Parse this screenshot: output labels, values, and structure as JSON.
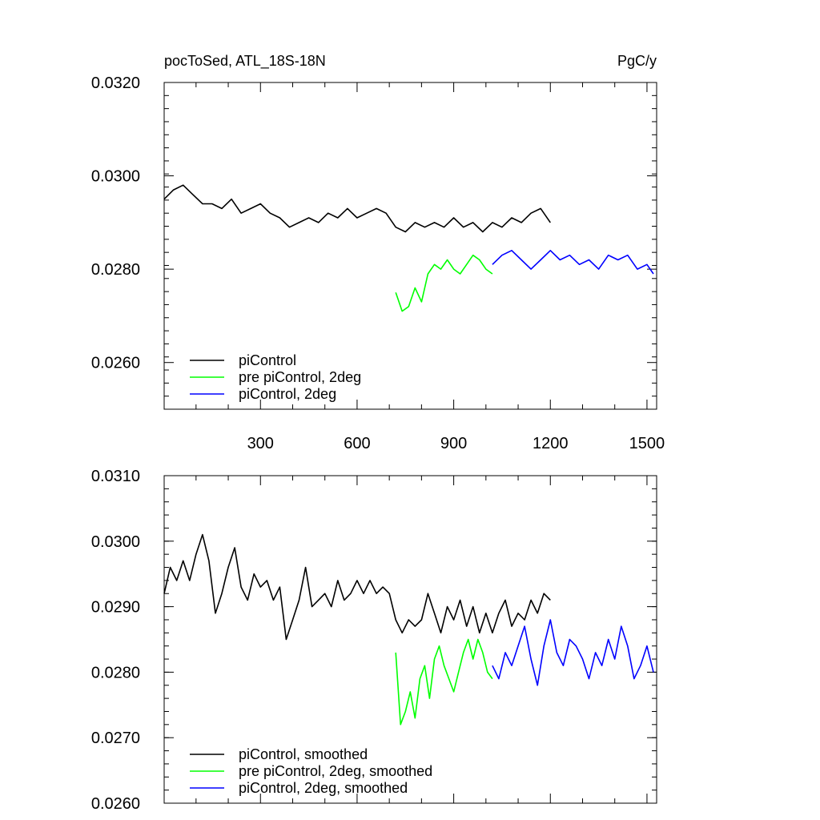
{
  "chart_data": [
    {
      "type": "line",
      "title": "pocToSed, ATL_18S-18N",
      "units": "PgC/y",
      "xlim": [
        1,
        1530
      ],
      "ylim": [
        0.025,
        0.032
      ],
      "x_ticks": [
        300,
        600,
        900,
        1200,
        1500
      ],
      "y_ticks": [
        "0.0320",
        "0.0300",
        "0.0280",
        "0.0260"
      ],
      "legend_position": "bottom-left",
      "series": [
        {
          "name": "piControl",
          "color": "#000000",
          "x": [
            1,
            30,
            60,
            90,
            120,
            150,
            180,
            210,
            240,
            270,
            300,
            330,
            360,
            390,
            420,
            450,
            480,
            510,
            540,
            570,
            600,
            630,
            660,
            690,
            720,
            750,
            780,
            810,
            840,
            870,
            900,
            930,
            960,
            990,
            1020,
            1050,
            1080,
            1110,
            1140,
            1170,
            1200
          ],
          "values": [
            0.0295,
            0.0297,
            0.0298,
            0.0296,
            0.0294,
            0.0294,
            0.0293,
            0.0295,
            0.0292,
            0.0293,
            0.0294,
            0.0292,
            0.0291,
            0.0289,
            0.029,
            0.0291,
            0.029,
            0.0292,
            0.0291,
            0.0293,
            0.0291,
            0.0292,
            0.0293,
            0.0292,
            0.0289,
            0.0288,
            0.029,
            0.0289,
            0.029,
            0.0289,
            0.0291,
            0.0289,
            0.029,
            0.0288,
            0.029,
            0.0289,
            0.0291,
            0.029,
            0.0292,
            0.0293,
            0.029
          ]
        },
        {
          "name": "pre piControl, 2deg",
          "color": "#00ff00",
          "x": [
            720,
            740,
            760,
            780,
            800,
            820,
            840,
            860,
            880,
            900,
            920,
            940,
            960,
            980,
            1000,
            1020
          ],
          "values": [
            0.0275,
            0.0271,
            0.0272,
            0.0276,
            0.0273,
            0.0279,
            0.0281,
            0.028,
            0.0282,
            0.028,
            0.0279,
            0.0281,
            0.0283,
            0.0282,
            0.028,
            0.0279
          ]
        },
        {
          "name": "piControl, 2deg",
          "color": "#0000ff",
          "x": [
            1020,
            1050,
            1080,
            1110,
            1140,
            1170,
            1200,
            1230,
            1260,
            1290,
            1320,
            1350,
            1380,
            1410,
            1440,
            1470,
            1500,
            1520
          ],
          "values": [
            0.0281,
            0.0283,
            0.0284,
            0.0282,
            0.028,
            0.0282,
            0.0284,
            0.0282,
            0.0283,
            0.0281,
            0.0282,
            0.028,
            0.0283,
            0.0282,
            0.0283,
            0.028,
            0.0281,
            0.0279
          ]
        }
      ]
    },
    {
      "type": "line",
      "xlim": [
        1,
        1530
      ],
      "ylim": [
        0.026,
        0.031
      ],
      "y_ticks": [
        "0.0310",
        "0.0300",
        "0.0290",
        "0.0280",
        "0.0270",
        "0.0260"
      ],
      "legend_position": "bottom-left",
      "series": [
        {
          "name": "piControl, smoothed",
          "color": "#000000",
          "x": [
            1,
            20,
            40,
            60,
            80,
            100,
            120,
            140,
            160,
            180,
            200,
            220,
            240,
            260,
            280,
            300,
            320,
            340,
            360,
            380,
            400,
            420,
            440,
            460,
            480,
            500,
            520,
            540,
            560,
            580,
            600,
            620,
            640,
            660,
            680,
            700,
            720,
            740,
            760,
            780,
            800,
            820,
            840,
            860,
            880,
            900,
            920,
            940,
            960,
            980,
            1000,
            1020,
            1040,
            1060,
            1080,
            1100,
            1120,
            1140,
            1160,
            1180,
            1200
          ],
          "values": [
            0.0292,
            0.0296,
            0.0294,
            0.0297,
            0.0294,
            0.0298,
            0.0301,
            0.0297,
            0.0289,
            0.0292,
            0.0296,
            0.0299,
            0.0293,
            0.0291,
            0.0295,
            0.0293,
            0.0294,
            0.0291,
            0.0293,
            0.0285,
            0.0288,
            0.0291,
            0.0296,
            0.029,
            0.0291,
            0.0292,
            0.029,
            0.0294,
            0.0291,
            0.0292,
            0.0294,
            0.0292,
            0.0294,
            0.0292,
            0.0293,
            0.0292,
            0.0288,
            0.0286,
            0.0288,
            0.0287,
            0.0288,
            0.0292,
            0.0289,
            0.0286,
            0.029,
            0.0288,
            0.0291,
            0.0287,
            0.029,
            0.0286,
            0.0289,
            0.0286,
            0.0289,
            0.0291,
            0.0287,
            0.0289,
            0.0288,
            0.0291,
            0.0289,
            0.0292,
            0.0291
          ]
        },
        {
          "name": "pre piControl, 2deg, smoothed",
          "color": "#00ff00",
          "x": [
            720,
            735,
            750,
            765,
            780,
            795,
            810,
            825,
            840,
            855,
            870,
            885,
            900,
            915,
            930,
            945,
            960,
            975,
            990,
            1005,
            1020
          ],
          "values": [
            0.0283,
            0.0272,
            0.0274,
            0.0277,
            0.0273,
            0.0279,
            0.0281,
            0.0276,
            0.0282,
            0.0284,
            0.0281,
            0.0279,
            0.0277,
            0.028,
            0.0283,
            0.0285,
            0.0282,
            0.0285,
            0.0283,
            0.028,
            0.0279
          ]
        },
        {
          "name": "piControl, 2deg, smoothed",
          "color": "#0000ff",
          "x": [
            1020,
            1040,
            1060,
            1080,
            1100,
            1120,
            1140,
            1160,
            1180,
            1200,
            1220,
            1240,
            1260,
            1280,
            1300,
            1320,
            1340,
            1360,
            1380,
            1400,
            1420,
            1440,
            1460,
            1480,
            1500,
            1520
          ],
          "values": [
            0.0281,
            0.0279,
            0.0283,
            0.0281,
            0.0284,
            0.0287,
            0.0282,
            0.0278,
            0.0284,
            0.0288,
            0.0283,
            0.0281,
            0.0285,
            0.0284,
            0.0282,
            0.0279,
            0.0283,
            0.0281,
            0.0285,
            0.0282,
            0.0287,
            0.0284,
            0.0279,
            0.0281,
            0.0284,
            0.028
          ]
        }
      ]
    }
  ]
}
